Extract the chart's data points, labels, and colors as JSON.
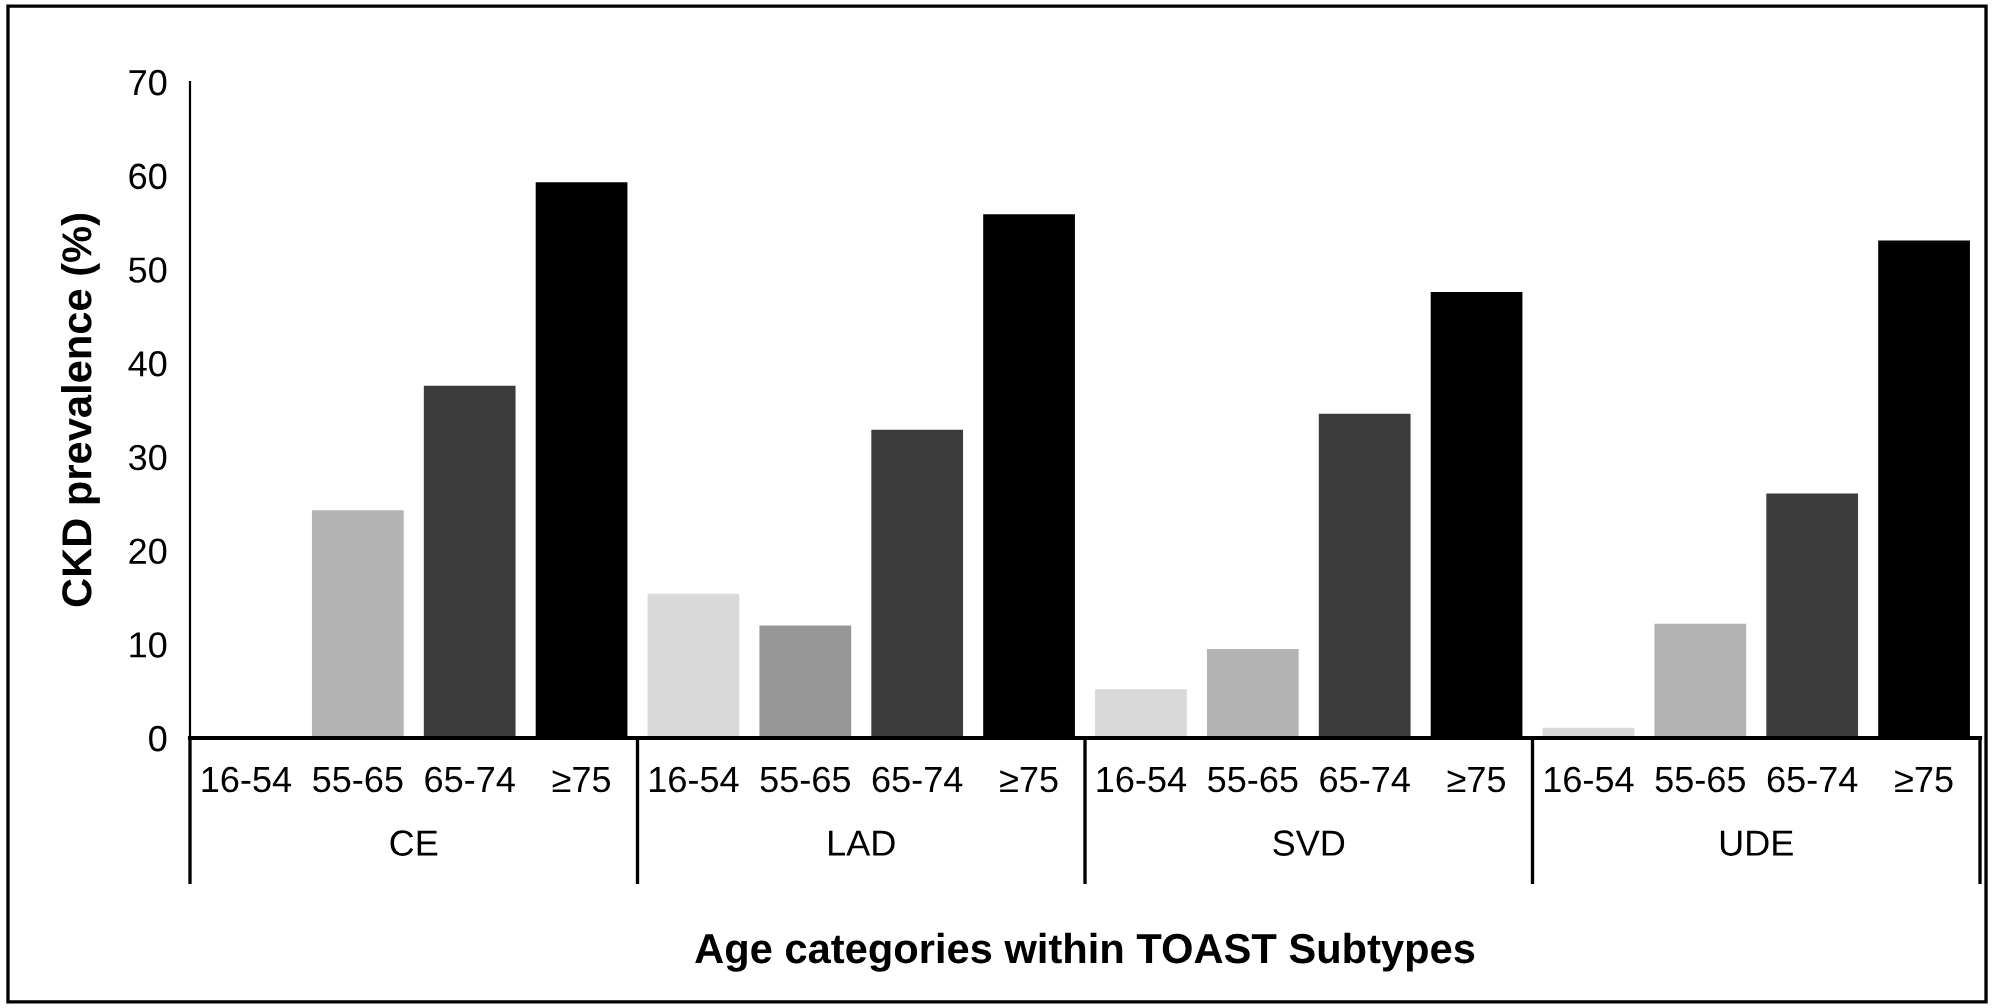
{
  "chart_data": {
    "type": "bar",
    "xlabel": "Age categories within TOAST Subtypes",
    "ylabel": "CKD prevalence (%)",
    "categories": [
      "16-54",
      "55-65",
      "65-74",
      "≥75",
      "16-54",
      "55-65",
      "65-74",
      "≥75",
      "16-54",
      "55-65",
      "65-74",
      "≥75",
      "16-54",
      "55-65",
      "65-74",
      "≥75"
    ],
    "values": [
      0,
      24.3,
      37.6,
      59.3,
      15.4,
      12.0,
      32.9,
      55.9,
      5.2,
      9.5,
      34.6,
      47.6,
      1.1,
      12.2,
      26.1,
      53.1
    ],
    "colors": [
      "#d9d9d9",
      "#b3b3b3",
      "#3c3c3c",
      "#000000",
      "#d9d9d9",
      "#969696",
      "#3c3c3c",
      "#000000",
      "#d9d9d9",
      "#b3b3b3",
      "#3c3c3c",
      "#000000",
      "#d9d9d9",
      "#b3b3b3",
      "#3c3c3c",
      "#000000"
    ],
    "annotations": [
      "CE",
      "LAD",
      "SVD",
      "UDE"
    ],
    "ylim": [
      0,
      70
    ],
    "yticks": [
      0,
      10,
      20,
      30,
      40,
      50,
      60,
      70
    ],
    "grid": false,
    "legend": false
  }
}
